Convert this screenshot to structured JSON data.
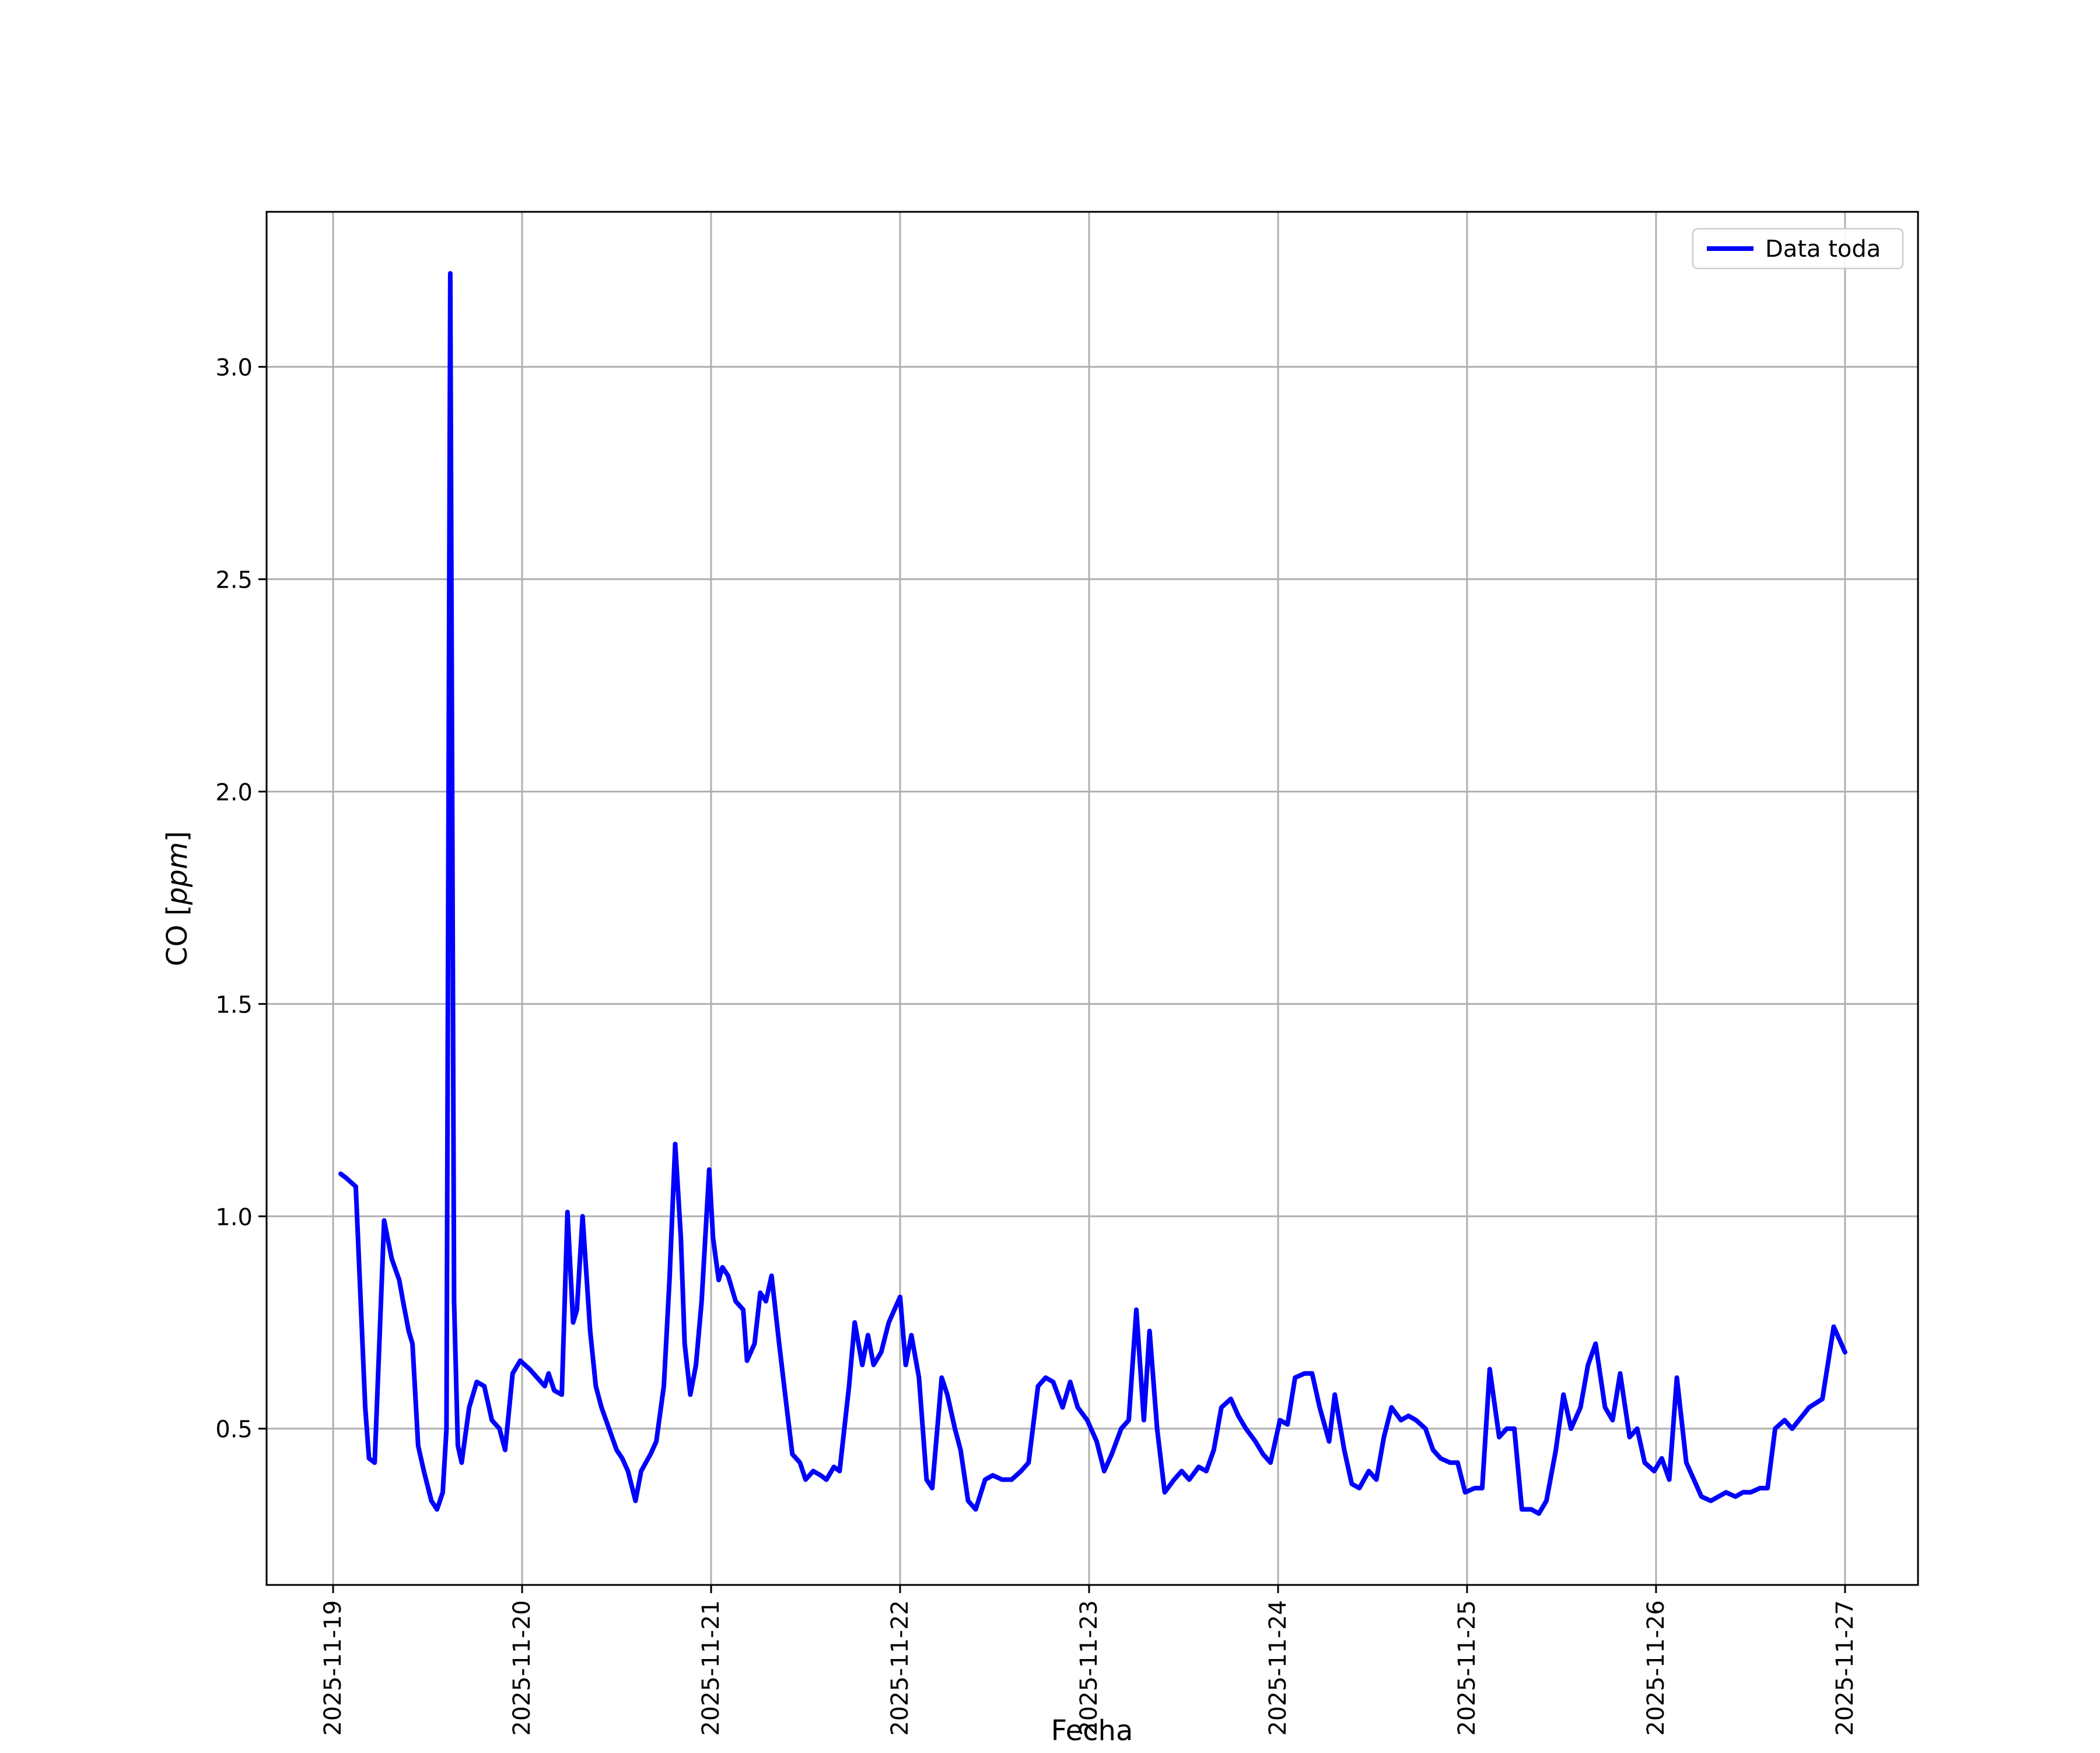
{
  "chart_data": {
    "type": "line",
    "title": "",
    "xlabel": "Fecha",
    "ylabel": "CO [ppm]",
    "ylabel_parts": {
      "prefix": "CO [",
      "italic": "ppm",
      "suffix": "]"
    },
    "grid": true,
    "grid_color": "#b0b0b0",
    "line_color": "#0000ff",
    "legend": {
      "entries": [
        "Data toda"
      ],
      "position": "upper right"
    },
    "x_tick_labels": [
      "2025-11-19",
      "2025-11-20",
      "2025-11-21",
      "2025-11-22",
      "2025-11-23",
      "2025-11-24",
      "2025-11-25",
      "2025-11-26",
      "2025-11-27"
    ],
    "y_tick_labels": [
      "0.5",
      "1.0",
      "1.5",
      "2.0",
      "2.5",
      "3.0"
    ],
    "xlim_days": [
      -0.352,
      8.386
    ],
    "ylim": [
      0.132,
      3.365
    ],
    "x_encoding": "days since 2025-11-19",
    "series": [
      {
        "name": "Data toda",
        "color": "#0000ff",
        "x_days": [
          0.04,
          0.07,
          0.12,
          0.17,
          0.19,
          0.22,
          0.27,
          0.31,
          0.35,
          0.37,
          0.4,
          0.42,
          0.45,
          0.48,
          0.52,
          0.55,
          0.58,
          0.6,
          0.62,
          0.64,
          0.66,
          0.68,
          0.72,
          0.76,
          0.8,
          0.84,
          0.88,
          0.91,
          0.95,
          0.99,
          1.04,
          1.08,
          1.12,
          1.14,
          1.17,
          1.21,
          1.24,
          1.27,
          1.29,
          1.32,
          1.36,
          1.39,
          1.42,
          1.46,
          1.5,
          1.53,
          1.56,
          1.6,
          1.63,
          1.68,
          1.71,
          1.75,
          1.78,
          1.81,
          1.84,
          1.86,
          1.89,
          1.92,
          1.95,
          1.99,
          2.01,
          2.04,
          2.06,
          2.09,
          2.13,
          2.17,
          2.19,
          2.23,
          2.26,
          2.29,
          2.32,
          2.36,
          2.4,
          2.43,
          2.47,
          2.5,
          2.54,
          2.58,
          2.61,
          2.65,
          2.68,
          2.73,
          2.76,
          2.8,
          2.83,
          2.86,
          2.9,
          2.94,
          2.97,
          3.0,
          3.03,
          3.06,
          3.1,
          3.14,
          3.17,
          3.22,
          3.25,
          3.29,
          3.32,
          3.36,
          3.4,
          3.45,
          3.49,
          3.54,
          3.59,
          3.64,
          3.68,
          3.73,
          3.77,
          3.81,
          3.86,
          3.9,
          3.94,
          3.99,
          4.04,
          4.08,
          4.12,
          4.17,
          4.21,
          4.25,
          4.29,
          4.32,
          4.36,
          4.4,
          4.45,
          4.49,
          4.53,
          4.58,
          4.62,
          4.66,
          4.7,
          4.75,
          4.79,
          4.83,
          4.88,
          4.92,
          4.96,
          5.01,
          5.05,
          5.09,
          5.14,
          5.18,
          5.22,
          5.27,
          5.3,
          5.35,
          5.39,
          5.43,
          5.48,
          5.52,
          5.56,
          5.6,
          5.65,
          5.69,
          5.73,
          5.78,
          5.82,
          5.86,
          5.91,
          5.95,
          5.99,
          6.04,
          6.08,
          6.12,
          6.17,
          6.21,
          6.25,
          6.29,
          6.34,
          6.38,
          6.42,
          6.47,
          6.51,
          6.55,
          6.6,
          6.64,
          6.68,
          6.73,
          6.77,
          6.81,
          6.86,
          6.9,
          6.94,
          6.99,
          7.03,
          7.07,
          7.11,
          7.16,
          7.2,
          7.24,
          7.29,
          7.33,
          7.37,
          7.42,
          7.46,
          7.5,
          7.55,
          7.59,
          7.63,
          7.68,
          7.72,
          7.81,
          7.88,
          7.94,
          8.0
        ],
        "y_ppm": [
          1.1,
          1.09,
          1.07,
          0.55,
          0.43,
          0.42,
          0.99,
          0.9,
          0.85,
          0.8,
          0.73,
          0.7,
          0.46,
          0.4,
          0.33,
          0.31,
          0.35,
          0.5,
          3.22,
          0.8,
          0.46,
          0.42,
          0.55,
          0.61,
          0.6,
          0.52,
          0.5,
          0.45,
          0.63,
          0.66,
          0.64,
          0.62,
          0.6,
          0.63,
          0.59,
          0.58,
          1.01,
          0.75,
          0.78,
          1.0,
          0.73,
          0.6,
          0.55,
          0.5,
          0.45,
          0.43,
          0.4,
          0.33,
          0.4,
          0.44,
          0.47,
          0.6,
          0.85,
          1.17,
          0.95,
          0.7,
          0.58,
          0.65,
          0.8,
          1.11,
          0.95,
          0.85,
          0.88,
          0.86,
          0.8,
          0.78,
          0.66,
          0.7,
          0.82,
          0.8,
          0.86,
          0.7,
          0.55,
          0.44,
          0.42,
          0.38,
          0.4,
          0.39,
          0.38,
          0.41,
          0.4,
          0.6,
          0.75,
          0.65,
          0.72,
          0.65,
          0.68,
          0.75,
          0.78,
          0.81,
          0.65,
          0.72,
          0.62,
          0.38,
          0.36,
          0.62,
          0.58,
          0.5,
          0.45,
          0.33,
          0.31,
          0.38,
          0.39,
          0.38,
          0.38,
          0.4,
          0.42,
          0.6,
          0.62,
          0.61,
          0.55,
          0.61,
          0.55,
          0.52,
          0.47,
          0.4,
          0.44,
          0.5,
          0.52,
          0.78,
          0.52,
          0.73,
          0.5,
          0.35,
          0.38,
          0.4,
          0.38,
          0.41,
          0.4,
          0.45,
          0.55,
          0.57,
          0.53,
          0.5,
          0.47,
          0.44,
          0.42,
          0.52,
          0.51,
          0.62,
          0.63,
          0.63,
          0.55,
          0.47,
          0.58,
          0.45,
          0.37,
          0.36,
          0.4,
          0.38,
          0.48,
          0.55,
          0.52,
          0.53,
          0.52,
          0.5,
          0.45,
          0.43,
          0.42,
          0.42,
          0.35,
          0.36,
          0.36,
          0.64,
          0.48,
          0.5,
          0.5,
          0.31,
          0.31,
          0.3,
          0.33,
          0.45,
          0.58,
          0.5,
          0.55,
          0.65,
          0.7,
          0.55,
          0.52,
          0.63,
          0.48,
          0.5,
          0.42,
          0.4,
          0.43,
          0.38,
          0.62,
          0.42,
          0.38,
          0.34,
          0.33,
          0.34,
          0.35,
          0.34,
          0.35,
          0.35,
          0.36,
          0.36,
          0.5,
          0.52,
          0.5,
          0.55,
          0.57,
          0.74,
          0.68
        ]
      }
    ]
  }
}
